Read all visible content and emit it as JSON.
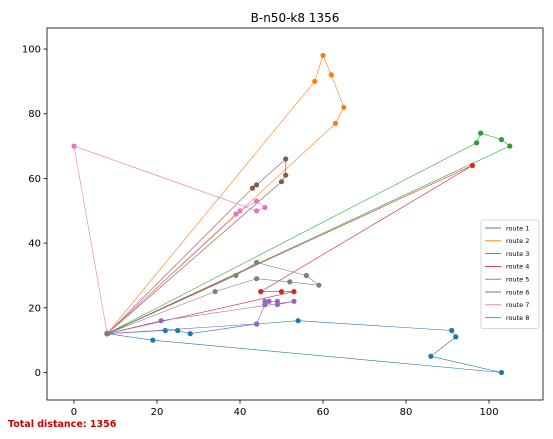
{
  "chart_data": {
    "type": "line",
    "title": "B-n50-k8 1356",
    "xlabel": "",
    "ylabel": "",
    "xlim": [
      -6.5,
      113
    ],
    "ylim": [
      -8.5,
      106.5
    ],
    "xticks": [
      0,
      20,
      40,
      60,
      80,
      100
    ],
    "yticks": [
      0,
      20,
      40,
      60,
      80,
      100
    ],
    "grid": false,
    "legend_position": "center-right",
    "depot": [
      8,
      12
    ],
    "series": [
      {
        "name": "route 1",
        "color": "#1f77b4",
        "points": [
          [
            8,
            12
          ],
          [
            19,
            10
          ],
          [
            103,
            0
          ],
          [
            86,
            5
          ],
          [
            92,
            11
          ],
          [
            91,
            13
          ],
          [
            54,
            16
          ],
          [
            44,
            15
          ],
          [
            28,
            12
          ],
          [
            25,
            13
          ],
          [
            22,
            13
          ],
          [
            8,
            12
          ]
        ]
      },
      {
        "name": "route 2",
        "color": "#ff7f0e",
        "points": [
          [
            8,
            12
          ],
          [
            63,
            77
          ],
          [
            65,
            82
          ],
          [
            62,
            92
          ],
          [
            60,
            98
          ],
          [
            58,
            90
          ],
          [
            8,
            12
          ]
        ]
      },
      {
        "name": "route 3",
        "color": "#2ca02c",
        "points": [
          [
            8,
            12
          ],
          [
            105,
            70
          ],
          [
            103,
            72
          ],
          [
            98,
            74
          ],
          [
            97,
            71
          ],
          [
            8,
            12
          ]
        ]
      },
      {
        "name": "route 4",
        "color": "#d62728",
        "points": [
          [
            8,
            12
          ],
          [
            96,
            64
          ],
          [
            45,
            25
          ],
          [
            50,
            25
          ],
          [
            53,
            25
          ],
          [
            8,
            12
          ]
        ]
      },
      {
        "name": "route 5",
        "color": "#9467bd",
        "points": [
          [
            8,
            12
          ],
          [
            44,
            15
          ],
          [
            46,
            21
          ],
          [
            47,
            22
          ],
          [
            46,
            22
          ],
          [
            49,
            22
          ],
          [
            49,
            21
          ],
          [
            53,
            22
          ],
          [
            21,
            16
          ],
          [
            8,
            12
          ]
        ]
      },
      {
        "name": "route 6",
        "color": "#8c564b",
        "points": [
          [
            8,
            12
          ],
          [
            50,
            59
          ],
          [
            51,
            61
          ],
          [
            51,
            66
          ],
          [
            44,
            58
          ],
          [
            43,
            57
          ],
          [
            8,
            12
          ]
        ]
      },
      {
        "name": "route 7",
        "color": "#e377c2",
        "points": [
          [
            8,
            12
          ],
          [
            0,
            70
          ],
          [
            44,
            50
          ],
          [
            46,
            51
          ],
          [
            44,
            53
          ],
          [
            40,
            50
          ],
          [
            39,
            49
          ],
          [
            8,
            12
          ]
        ]
      },
      {
        "name": "route 8",
        "color": "#7f7f7f",
        "points": [
          [
            8,
            12
          ],
          [
            39,
            30
          ],
          [
            44,
            34
          ],
          [
            56,
            30
          ],
          [
            59,
            27
          ],
          [
            52,
            28
          ],
          [
            44,
            29
          ],
          [
            34,
            25
          ],
          [
            8,
            12
          ]
        ]
      }
    ]
  },
  "footer": {
    "total_distance": "Total distance: 1356"
  }
}
